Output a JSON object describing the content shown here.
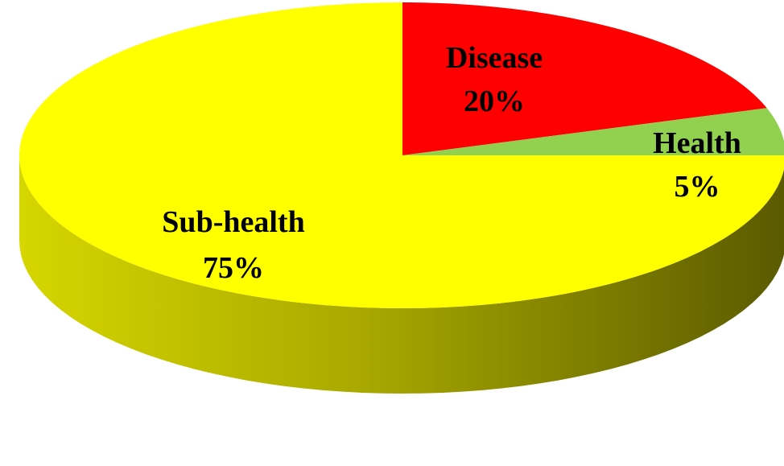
{
  "chart_data": {
    "type": "pie",
    "style": "3d",
    "start_angle_deg": 0,
    "direction": "clockwise",
    "slices": [
      {
        "label": "Disease",
        "value": 20,
        "value_label": "20%",
        "color": "#ff0000",
        "side_color": "#a80000"
      },
      {
        "label": "Health",
        "value": 5,
        "value_label": "5%",
        "color": "#92d050",
        "side_color": "#5a8a2e"
      },
      {
        "label": "Sub-health",
        "value": 75,
        "value_label": "75%",
        "color": "#ffff00",
        "side_color": "#8c8c00"
      }
    ]
  }
}
